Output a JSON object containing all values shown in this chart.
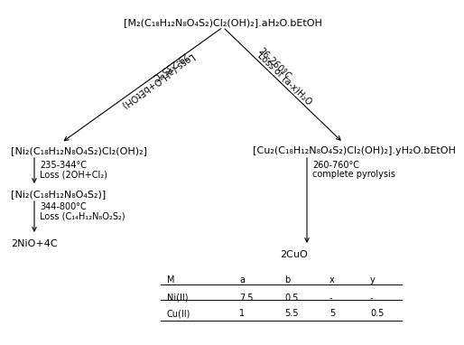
{
  "bg_color": "#ffffff",
  "title_top": "[M₂(C₁₈H₁₂N₈O₄S₂)Cl₂(OH)₂].aH₂O.bEtOH",
  "left_branch": {
    "compound1": "[Ni₂(C₁₈H₁₂N₈O₄S₂)Cl₂(OH)₂]",
    "compound2": "[Ni₂(C₁₈H₁₂N₈O₄S₂)]",
    "compound3": "2NiO+4C",
    "arrow1_label1": "29-235°C",
    "arrow1_label2": "Loss (aH₂O+bEtOH)",
    "arrow2_label1": "235-344°C",
    "arrow2_label2": "Loss (2OH+Cl₂)",
    "arrow3_label1": "344-800°C",
    "arrow3_label2": "Loss (C₁₄H₁₂N₈O₂S₂)"
  },
  "right_branch": {
    "compound1": "[Cu₂(C₁₈H₁₂N₈O₄S₂)Cl₂(OH)₂].yH₂O.bEtOH",
    "compound2": "2CuO",
    "arrow1_label1": "26-260°C",
    "arrow1_label2": "Loss of (a-x)H₂O",
    "arrow2_label1": "260-760°C",
    "arrow2_label2": "complete pyrolysis"
  },
  "table": {
    "headers": [
      "M",
      "a",
      "b",
      "x",
      "y"
    ],
    "rows": [
      [
        "Ni(II)",
        "7.5",
        "0.5",
        "-",
        "-"
      ],
      [
        "Cu(II)",
        "1",
        "5.5",
        "5",
        "0.5"
      ]
    ]
  },
  "font_size": 8,
  "small_font": 7
}
